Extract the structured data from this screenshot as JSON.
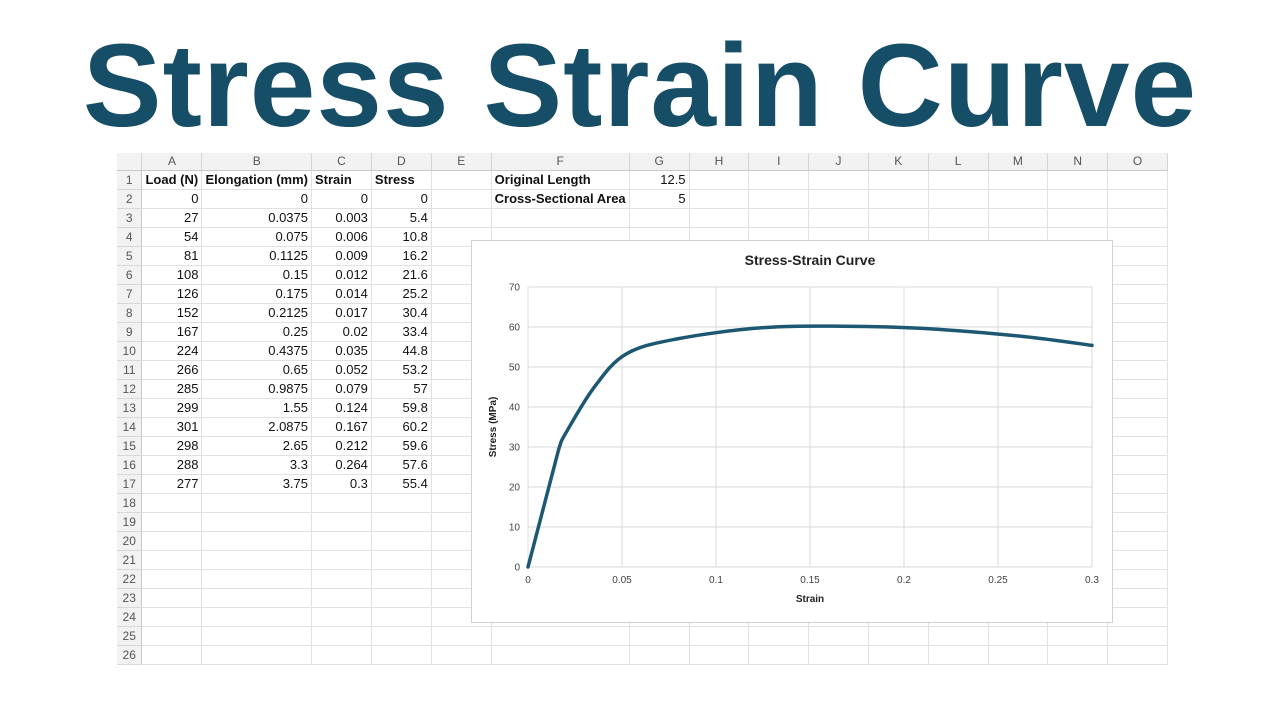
{
  "page": {
    "title": "Stress Strain Curve"
  },
  "spreadsheet": {
    "columns": [
      "A",
      "B",
      "C",
      "D",
      "E",
      "F",
      "G",
      "H",
      "I",
      "J",
      "K",
      "L",
      "M",
      "N",
      "O"
    ],
    "row_count": 26,
    "table_headers": [
      "Load (N)",
      "Elongation (mm)",
      "Strain",
      "Stress"
    ],
    "table_rows": [
      [
        "0",
        "0",
        "0",
        "0"
      ],
      [
        "27",
        "0.0375",
        "0.003",
        "5.4"
      ],
      [
        "54",
        "0.075",
        "0.006",
        "10.8"
      ],
      [
        "81",
        "0.1125",
        "0.009",
        "16.2"
      ],
      [
        "108",
        "0.15",
        "0.012",
        "21.6"
      ],
      [
        "126",
        "0.175",
        "0.014",
        "25.2"
      ],
      [
        "152",
        "0.2125",
        "0.017",
        "30.4"
      ],
      [
        "167",
        "0.25",
        "0.02",
        "33.4"
      ],
      [
        "224",
        "0.4375",
        "0.035",
        "44.8"
      ],
      [
        "266",
        "0.65",
        "0.052",
        "53.2"
      ],
      [
        "285",
        "0.9875",
        "0.079",
        "57"
      ],
      [
        "299",
        "1.55",
        "0.124",
        "59.8"
      ],
      [
        "301",
        "2.0875",
        "0.167",
        "60.2"
      ],
      [
        "298",
        "2.65",
        "0.212",
        "59.6"
      ],
      [
        "288",
        "3.3",
        "0.264",
        "57.6"
      ],
      [
        "277",
        "3.75",
        "0.3",
        "55.4"
      ]
    ],
    "params": [
      {
        "label": "Original Length",
        "value": "12.5"
      },
      {
        "label": "Cross-Sectional Area",
        "value": "5"
      }
    ]
  },
  "chart_data": {
    "type": "line",
    "title": "Stress-Strain Curve",
    "xlabel": "Strain",
    "ylabel": "Stress (MPa)",
    "xlim": [
      0,
      0.3
    ],
    "ylim": [
      0,
      70
    ],
    "xticks": [
      "0",
      "0.05",
      "0.1",
      "0.15",
      "0.2",
      "0.25",
      "0.3"
    ],
    "yticks": [
      "0",
      "10",
      "20",
      "30",
      "40",
      "50",
      "60",
      "70"
    ],
    "grid": true,
    "line_color": "#1d5872",
    "x": [
      0,
      0.003,
      0.006,
      0.009,
      0.012,
      0.014,
      0.017,
      0.02,
      0.035,
      0.052,
      0.079,
      0.124,
      0.167,
      0.212,
      0.264,
      0.3
    ],
    "y": [
      0,
      5.4,
      10.8,
      16.2,
      21.6,
      25.2,
      30.4,
      33.4,
      44.8,
      53.2,
      57,
      59.8,
      60.2,
      59.6,
      57.6,
      55.4
    ]
  }
}
